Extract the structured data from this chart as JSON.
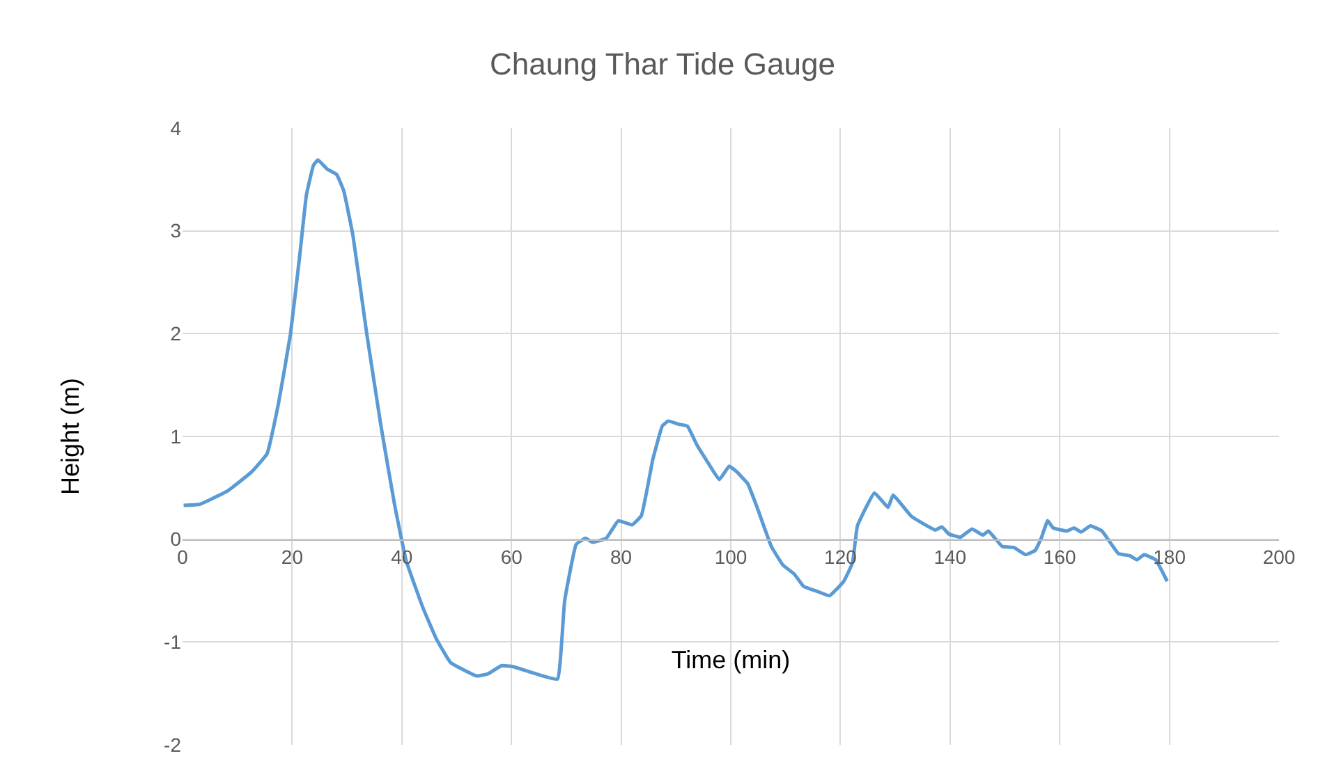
{
  "chart_data": {
    "type": "line",
    "title": "Chaung Thar Tide Gauge",
    "xlabel": "Time (min)",
    "ylabel": "Height (m)",
    "xlim": [
      0,
      200
    ],
    "xticks": [
      0,
      20,
      40,
      60,
      80,
      100,
      120,
      140,
      160,
      180,
      200
    ],
    "ylim": [
      -2,
      4
    ],
    "yticks": [
      -2,
      -1,
      0,
      1,
      2,
      3,
      4
    ],
    "grid": true,
    "marker": "none",
    "line_style": "solid",
    "series": [
      {
        "color": "#5b9bd5",
        "x": [
          0.2,
          3.1,
          8.2,
          12.5,
          15.4,
          17.5,
          19.7,
          21.4,
          22.6,
          23.9,
          24.7,
          26.4,
          28.1,
          29.4,
          31.1,
          33.6,
          36.2,
          38.7,
          40.8,
          43.8,
          46.3,
          48.9,
          53.6,
          55.7,
          58.2,
          60.3,
          65.1,
          68.4,
          69.7,
          71.8,
          73.5,
          74.8,
          77.3,
          79.5,
          82.0,
          83.7,
          85.8,
          87.5,
          88.6,
          90.4,
          92.1,
          93.8,
          95.9,
          97.9,
          99.7,
          101.0,
          103.1,
          104.8,
          107.4,
          109.5,
          111.6,
          113.3,
          115.9,
          118.0,
          120.6,
          122.2,
          123.1,
          126.2,
          128.7,
          129.6,
          133.0,
          137.3,
          138.5,
          139.8,
          141.9,
          144.0,
          146.0,
          147.0,
          149.5,
          151.6,
          153.8,
          155.5,
          156.7,
          157.8,
          158.8,
          161.3,
          162.6,
          163.9,
          165.6,
          167.7,
          170.7,
          172.8,
          174.1,
          175.4,
          177.5,
          179.6
        ],
        "values": [
          0.33,
          0.34,
          0.47,
          0.65,
          0.83,
          1.32,
          2.0,
          2.77,
          3.35,
          3.64,
          3.69,
          3.6,
          3.55,
          3.39,
          2.95,
          2.0,
          1.1,
          0.33,
          -0.21,
          -0.66,
          -0.97,
          -1.2,
          -1.33,
          -1.31,
          -1.23,
          -1.24,
          -1.32,
          -1.36,
          -0.6,
          -0.05,
          0.01,
          -0.03,
          0.01,
          0.18,
          0.14,
          0.23,
          0.78,
          1.1,
          1.15,
          1.12,
          1.1,
          0.92,
          0.74,
          0.58,
          0.71,
          0.66,
          0.54,
          0.31,
          -0.07,
          -0.25,
          -0.34,
          -0.46,
          -0.51,
          -0.55,
          -0.41,
          -0.23,
          0.13,
          0.45,
          0.31,
          0.43,
          0.22,
          0.09,
          0.12,
          0.05,
          0.02,
          0.1,
          0.04,
          0.08,
          -0.07,
          -0.08,
          -0.15,
          -0.11,
          0.02,
          0.18,
          0.11,
          0.08,
          0.11,
          0.07,
          0.13,
          0.08,
          -0.14,
          -0.16,
          -0.2,
          -0.15,
          -0.2,
          -0.41
        ]
      }
    ]
  }
}
